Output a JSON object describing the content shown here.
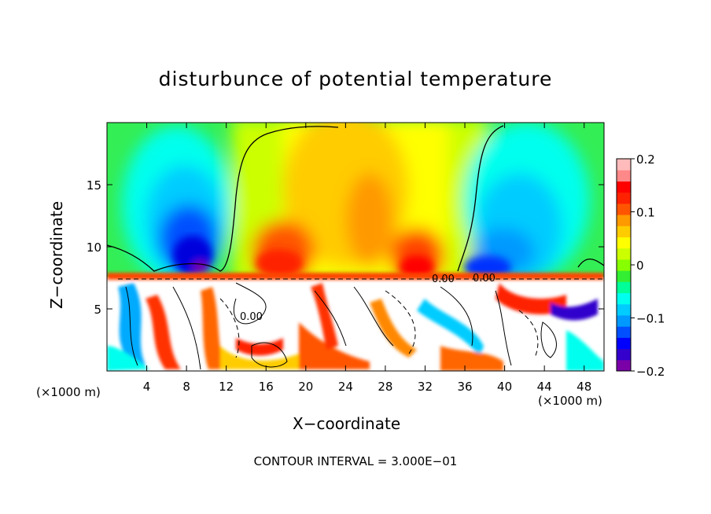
{
  "title": "disturbunce of potential temperature",
  "xlabel": "X−coordinate",
  "ylabel": "Z−coordinate",
  "x_unit_left": "(×1000 m)",
  "x_unit_right": "(×1000 m)",
  "contour_note": "CONTOUR INTERVAL = 3.000E−01",
  "chart_data": {
    "type": "heatmap",
    "title": "disturbunce of potential temperature",
    "xlabel": "X−coordinate",
    "ylabel": "Z−coordinate",
    "xlim": [
      0,
      50
    ],
    "ylim": [
      0,
      20
    ],
    "x_ticks": [
      4,
      8,
      12,
      16,
      20,
      24,
      28,
      32,
      36,
      40,
      44,
      48
    ],
    "y_ticks": [
      5,
      10,
      15
    ],
    "colorbar": {
      "min": -0.2,
      "max": 0.2,
      "ticks": [
        {
          "value": 0.2,
          "label": "0.2"
        },
        {
          "value": 0.1,
          "label": "0.1"
        },
        {
          "value": 0,
          "label": "0"
        },
        {
          "value": -0.1,
          "label": "−0.1"
        },
        {
          "value": -0.2,
          "label": "−0.2"
        }
      ],
      "colors": [
        "#7a00a8",
        "#3300cc",
        "#0000ff",
        "#0050ff",
        "#0099ff",
        "#00ccff",
        "#00ffee",
        "#00ff99",
        "#33ee33",
        "#88ff00",
        "#ccff00",
        "#ffff00",
        "#ffcc00",
        "#ff9900",
        "#ff5500",
        "#ff2200",
        "#ff0000",
        "#ff8888",
        "#ffbbbb"
      ]
    },
    "contour_labels": [
      "0.00",
      "0.00",
      "0.00"
    ],
    "contour_interval": "3.000E−01"
  }
}
